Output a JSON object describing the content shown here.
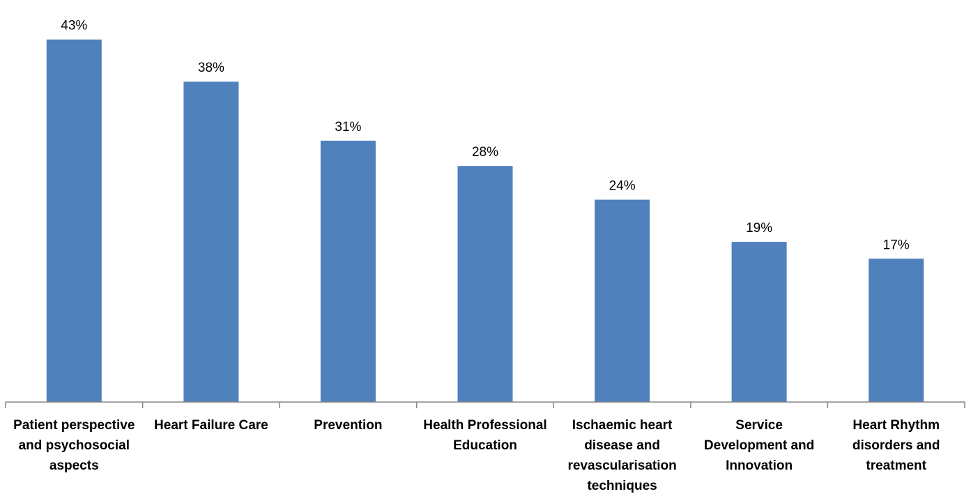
{
  "chart_data": {
    "type": "bar",
    "title": "",
    "xlabel": "",
    "ylabel": "",
    "ylim": [
      0,
      45
    ],
    "grid": false,
    "legend": "none",
    "bar_color": "#4F81BD",
    "axis_color": "#868686",
    "categories": [
      "Patient perspective and psychosocial aspects",
      "Heart Failure Care",
      "Prevention",
      "Health Professional Education",
      "Ischaemic heart disease and revascularisation techniques",
      "Service Development and Innovation",
      "Heart Rhythm disorders and treatment"
    ],
    "category_lines": [
      [
        "Patient perspective",
        "and psychosocial",
        "aspects"
      ],
      [
        "Heart Failure Care"
      ],
      [
        "Prevention"
      ],
      [
        "Health Professional",
        "Education"
      ],
      [
        "Ischaemic heart",
        "disease and",
        "revascularisation",
        "techniques"
      ],
      [
        "Service",
        "Development and",
        "Innovation"
      ],
      [
        "Heart Rhythm",
        "disorders and",
        "treatment"
      ]
    ],
    "values": [
      43,
      38,
      31,
      28,
      24,
      19,
      17
    ],
    "value_labels": [
      "43%",
      "38%",
      "31%",
      "28%",
      "24%",
      "19%",
      "17%"
    ]
  }
}
